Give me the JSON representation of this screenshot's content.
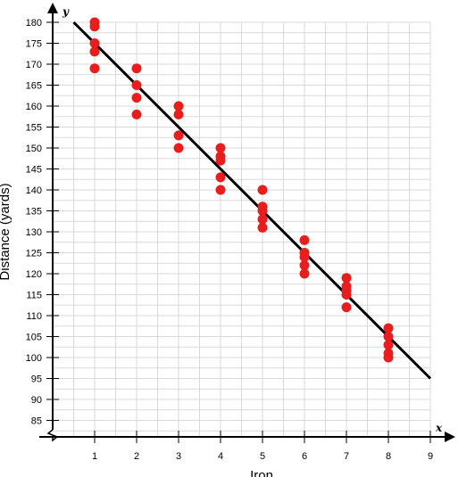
{
  "chart_data": {
    "type": "scatter",
    "title": "",
    "xlabel": "Iron",
    "ylabel": "Distance (yards)",
    "x_axis_letter": "x",
    "y_axis_letter": "y",
    "xlim": [
      0,
      9
    ],
    "ylim": [
      85,
      180
    ],
    "x_ticks": [
      1,
      2,
      3,
      4,
      5,
      6,
      7,
      8,
      9
    ],
    "y_ticks": [
      85,
      90,
      95,
      100,
      105,
      110,
      115,
      120,
      125,
      130,
      135,
      140,
      145,
      150,
      155,
      160,
      165,
      170,
      175,
      180
    ],
    "grid": true,
    "axis_break_on_y": true,
    "points": [
      {
        "x": 1,
        "y": 180
      },
      {
        "x": 1,
        "y": 179
      },
      {
        "x": 1,
        "y": 175
      },
      {
        "x": 1,
        "y": 173
      },
      {
        "x": 1,
        "y": 169
      },
      {
        "x": 2,
        "y": 169
      },
      {
        "x": 2,
        "y": 165
      },
      {
        "x": 2,
        "y": 162
      },
      {
        "x": 2,
        "y": 158
      },
      {
        "x": 3,
        "y": 160
      },
      {
        "x": 3,
        "y": 158
      },
      {
        "x": 3,
        "y": 153
      },
      {
        "x": 3,
        "y": 150
      },
      {
        "x": 4,
        "y": 150
      },
      {
        "x": 4,
        "y": 148
      },
      {
        "x": 4,
        "y": 147
      },
      {
        "x": 4,
        "y": 143
      },
      {
        "x": 4,
        "y": 140
      },
      {
        "x": 5,
        "y": 140
      },
      {
        "x": 5,
        "y": 136
      },
      {
        "x": 5,
        "y": 135
      },
      {
        "x": 5,
        "y": 133
      },
      {
        "x": 5,
        "y": 131
      },
      {
        "x": 6,
        "y": 128
      },
      {
        "x": 6,
        "y": 125
      },
      {
        "x": 6,
        "y": 124
      },
      {
        "x": 6,
        "y": 122
      },
      {
        "x": 6,
        "y": 120
      },
      {
        "x": 7,
        "y": 119
      },
      {
        "x": 7,
        "y": 117
      },
      {
        "x": 7,
        "y": 116
      },
      {
        "x": 7,
        "y": 115
      },
      {
        "x": 7,
        "y": 112
      },
      {
        "x": 8,
        "y": 107
      },
      {
        "x": 8,
        "y": 105
      },
      {
        "x": 8,
        "y": 103
      },
      {
        "x": 8,
        "y": 101
      },
      {
        "x": 8,
        "y": 100
      }
    ],
    "trend_line": {
      "x1": 0.5,
      "y1": 180,
      "x2": 9,
      "y2": 95
    },
    "point_color": "#e81e1e",
    "line_color": "#000000"
  }
}
